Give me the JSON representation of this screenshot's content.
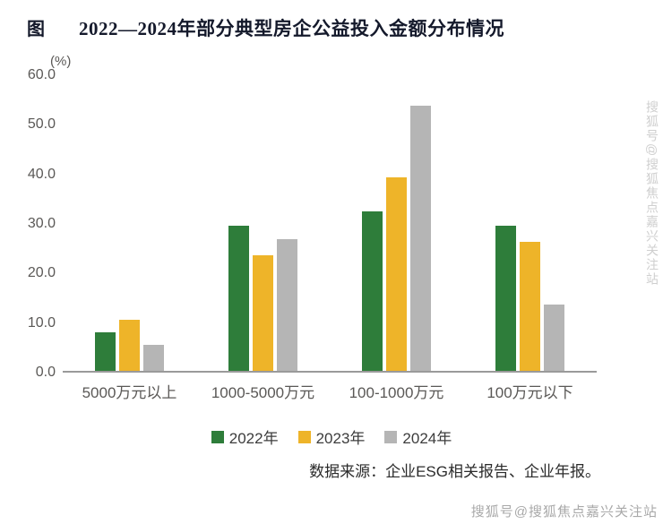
{
  "header": {
    "figure_label": "图"
  },
  "chart_data": {
    "type": "bar",
    "title": "2022—2024年部分典型房企公益投入金额分布情况",
    "categories": [
      "5000万元以上",
      "1000-5000万元",
      "100-1000万元",
      "100万元以下"
    ],
    "series": [
      {
        "name": "2022年",
        "color": "#2e7d3a",
        "values": [
          7.9,
          29.5,
          32.4,
          29.5
        ]
      },
      {
        "name": "2023年",
        "color": "#eeb429",
        "values": [
          10.3,
          23.5,
          39.3,
          26.2
        ]
      },
      {
        "name": "2024年",
        "color": "#b5b5b5",
        "values": [
          5.3,
          26.8,
          53.9,
          13.4
        ]
      }
    ],
    "ylabel": "(%)",
    "xlabel": "",
    "ylim": [
      0,
      60
    ],
    "yticks": [
      0,
      10,
      20,
      30,
      40,
      50,
      60
    ],
    "ytick_labels": [
      "0.0",
      "10.0",
      "20.0",
      "30.0",
      "40.0",
      "50.0",
      "60.0"
    ],
    "grid": false,
    "legend_position": "bottom"
  },
  "footer": {
    "source": "数据来源：企业ESG相关报告、企业年报。"
  },
  "watermark": {
    "text": "搜狐号@搜狐焦点嘉兴关注站"
  }
}
